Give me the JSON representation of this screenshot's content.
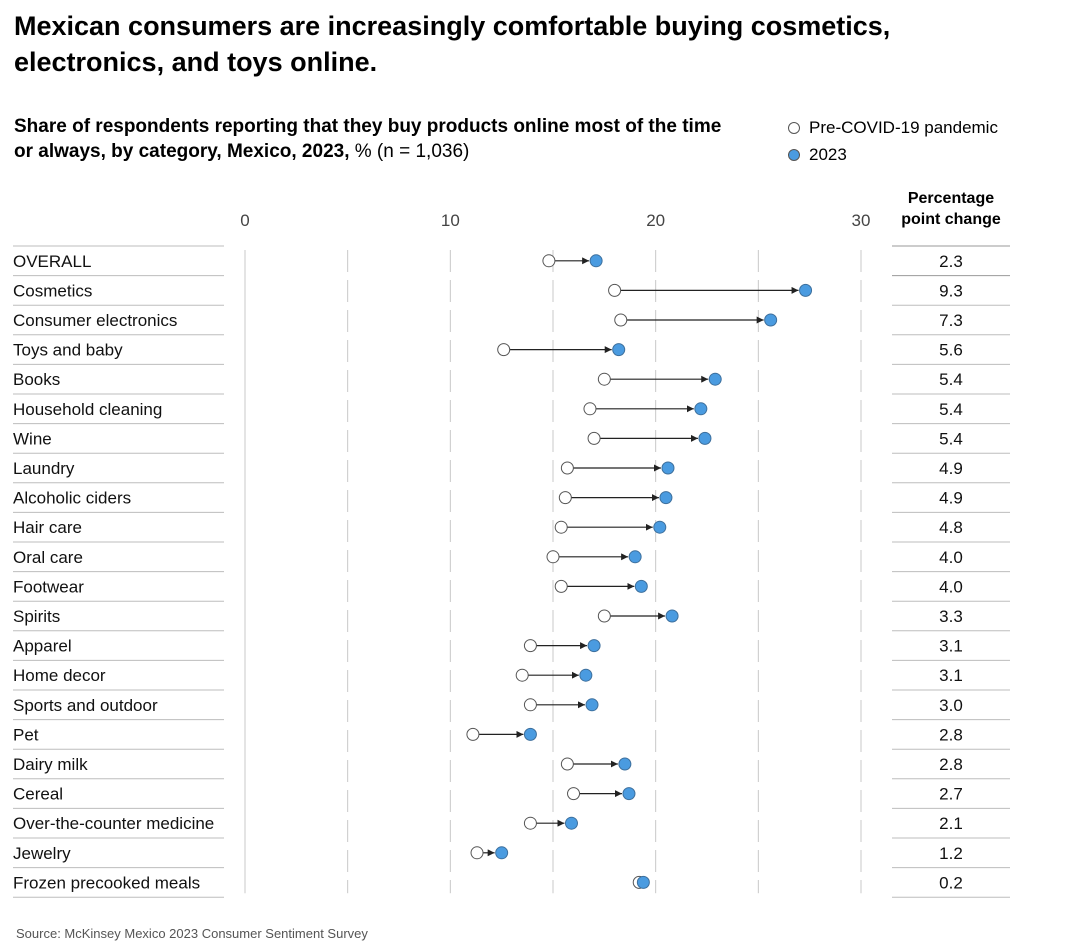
{
  "title": "Mexican consumers are increasingly comfortable buying cosmetics, electronics, and toys online.",
  "subtitle": {
    "bold": "Share of respondents reporting that they buy products online most of the time or always, by category, Mexico, 2023,",
    "regular": " % (n = 1,036)"
  },
  "legend": {
    "pre": "Pre-COVID-19 pandemic",
    "post": "2023"
  },
  "pp_header": "Percentage point change",
  "source": "Source: McKinsey Mexico 2023 Consumer Sentiment Survey",
  "colors": {
    "post": "#4a9be0",
    "pre": "#ffffff",
    "line": "#222222",
    "grid": "#c8c8c8",
    "divider": "#bdbdbd"
  },
  "chart_data": {
    "type": "dumbbell",
    "xlim": [
      0,
      30
    ],
    "xticks": [
      "0",
      "10",
      "20",
      "30"
    ],
    "xtick_values": [
      0,
      10,
      20,
      30
    ],
    "series": [
      {
        "name": "Pre-COVID-19 pandemic"
      },
      {
        "name": "2023"
      }
    ],
    "categories": [
      "OVERALL",
      "Cosmetics",
      "Consumer electronics",
      "Toys and baby",
      "Books",
      "Household cleaning",
      "Wine",
      "Laundry",
      "Alcoholic ciders",
      "Hair care",
      "Oral care",
      "Footwear",
      "Spirits",
      "Apparel",
      "Home decor",
      "Sports and outdoor",
      "Pet",
      "Dairy milk",
      "Cereal",
      "Over-the-counter medicine",
      "Jewelry",
      "Frozen precooked meals"
    ],
    "pre": [
      14.8,
      18.0,
      18.3,
      12.6,
      17.5,
      16.8,
      17.0,
      15.7,
      15.6,
      15.4,
      15.0,
      15.4,
      17.5,
      13.9,
      13.5,
      13.9,
      11.1,
      15.7,
      16.0,
      13.9,
      11.3,
      19.2
    ],
    "post": [
      17.1,
      27.3,
      25.6,
      18.2,
      22.9,
      22.2,
      22.4,
      20.6,
      20.5,
      20.2,
      19.0,
      19.3,
      20.8,
      17.0,
      16.6,
      16.9,
      13.9,
      18.5,
      18.7,
      15.9,
      12.5,
      19.4
    ],
    "change_labels": [
      "2.3",
      "9.3",
      "7.3",
      "5.6",
      "5.4",
      "5.4",
      "5.4",
      "4.9",
      "4.9",
      "4.8",
      "4.0",
      "4.0",
      "3.3",
      "3.1",
      "3.1",
      "3.0",
      "2.8",
      "2.8",
      "2.7",
      "2.1",
      "1.2",
      "0.2"
    ]
  }
}
